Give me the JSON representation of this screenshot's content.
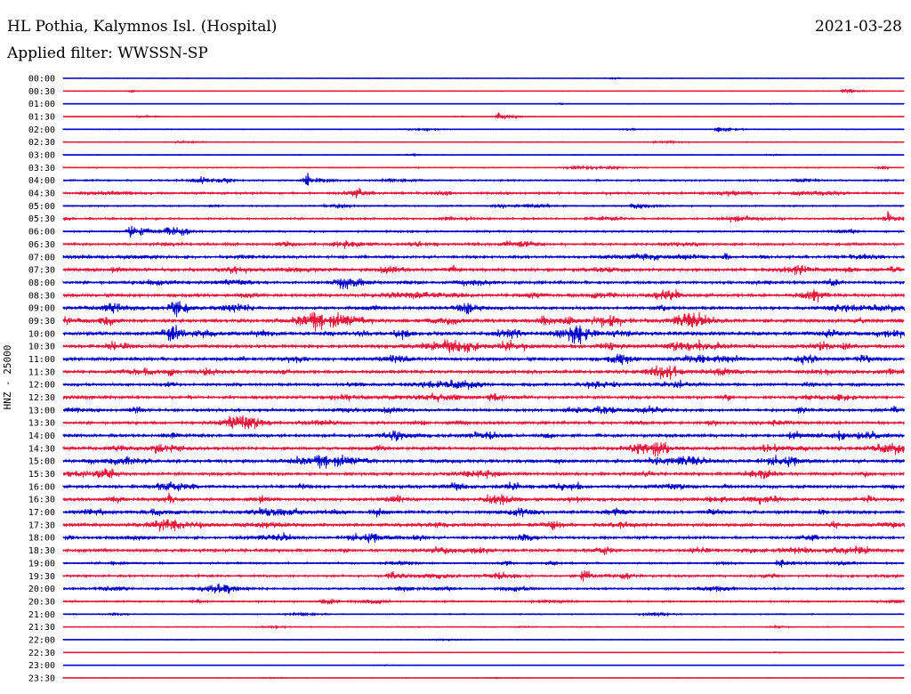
{
  "header": {
    "station": "HL Pothia, Kalymnos Isl. (Hospital)",
    "date": "2021-03-28",
    "filter": "Applied filter: WWSSN-SP"
  },
  "chart_data": {
    "type": "line",
    "title": "HL Pothia, Kalymnos Isl. (Hospital)",
    "subtitle": "Applied filter: WWSSN-SP",
    "ylabel": "HNZ - 25000",
    "xlabel": "",
    "grid": false,
    "row_labels": [
      "00:00",
      "00:30",
      "01:00",
      "01:30",
      "02:00",
      "02:30",
      "03:00",
      "03:30",
      "04:00",
      "04:30",
      "05:00",
      "05:30",
      "06:00",
      "06:30",
      "07:00",
      "07:30",
      "08:00",
      "08:30",
      "09:00",
      "09:30",
      "10:00",
      "10:30",
      "11:00",
      "11:30",
      "12:00",
      "12:30",
      "13:00",
      "13:30",
      "14:00",
      "14:30",
      "15:00",
      "15:30",
      "16:00",
      "16:30",
      "17:00",
      "17:30",
      "18:00",
      "18:30",
      "19:00",
      "19:30",
      "20:00",
      "20:30",
      "21:00",
      "21:30",
      "22:00",
      "22:30",
      "23:00",
      "23:30"
    ],
    "row_colors": [
      "#0000cc",
      "#e8183c"
    ],
    "noise_level": [
      0.6,
      0.6,
      0.7,
      0.7,
      0.9,
      0.9,
      0.8,
      1.2,
      1.8,
      2.4,
      1.6,
      2.2,
      2.0,
      2.6,
      3.0,
      3.6,
      3.0,
      3.4,
      3.2,
      4.2,
      4.4,
      4.0,
      3.6,
      3.6,
      3.0,
      3.2,
      3.0,
      3.0,
      3.2,
      3.4,
      3.6,
      3.2,
      3.4,
      3.4,
      3.4,
      3.6,
      3.0,
      3.2,
      2.0,
      2.4,
      2.2,
      1.8,
      1.2,
      1.0,
      0.6,
      0.7,
      0.6,
      0.7
    ],
    "events": [
      {
        "row": 1,
        "x": 0.93,
        "amp": 5
      },
      {
        "row": 3,
        "x": 0.52,
        "amp": 7
      },
      {
        "row": 4,
        "x": 0.78,
        "amp": 6
      },
      {
        "row": 8,
        "x": 0.29,
        "amp": 11
      },
      {
        "row": 10,
        "x": 0.68,
        "amp": 5
      },
      {
        "row": 11,
        "x": 0.98,
        "amp": 9
      },
      {
        "row": 12,
        "x": 0.08,
        "amp": 12
      },
      {
        "row": 18,
        "x": 0.13,
        "amp": 12
      },
      {
        "row": 19,
        "x": 0.57,
        "amp": 9
      },
      {
        "row": 20,
        "x": 0.61,
        "amp": 22
      },
      {
        "row": 24,
        "x": 0.73,
        "amp": 7
      },
      {
        "row": 25,
        "x": 0.51,
        "amp": 10
      },
      {
        "row": 38,
        "x": 0.85,
        "amp": 6
      },
      {
        "row": 39,
        "x": 0.39,
        "amp": 8
      },
      {
        "row": 39,
        "x": 0.62,
        "amp": 9
      },
      {
        "row": 40,
        "x": 0.19,
        "amp": 9
      },
      {
        "row": 40,
        "x": 0.4,
        "amp": 6
      },
      {
        "row": 41,
        "x": 0.31,
        "amp": 6
      }
    ]
  }
}
